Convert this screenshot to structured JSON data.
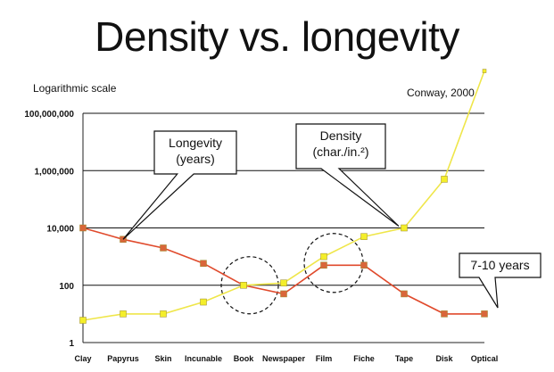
{
  "slide": {
    "title": "Density vs. longevity",
    "subtitle": "Logarithmic scale",
    "source": "Conway, 2000"
  },
  "chart_data": {
    "type": "line",
    "yscale": "log",
    "ylim": [
      1,
      100000000
    ],
    "yticks": [
      {
        "value": 1,
        "label": "1"
      },
      {
        "value": 100,
        "label": "100"
      },
      {
        "value": 10000,
        "label": "10,000"
      },
      {
        "value": 1000000,
        "label": "1,000,000"
      },
      {
        "value": 100000000,
        "label": "100,000,000"
      }
    ],
    "grid": true,
    "categories": [
      "Clay",
      "Papyrus",
      "Skin",
      "Incunable",
      "Book",
      "Newspaper",
      "Film",
      "Fiche",
      "Tape",
      "Disk",
      "Optical"
    ],
    "series": [
      {
        "key": "longevity",
        "color": "#e04a2c",
        "marker_color": "#d9663a",
        "values": [
          10000,
          4000,
          2000,
          580,
          100,
          50,
          500,
          500,
          50,
          10,
          10
        ]
      },
      {
        "key": "density",
        "color": "#efe64a",
        "marker_color": "#f4ee2a",
        "values": [
          6,
          10,
          10,
          26,
          100,
          120,
          1000,
          5000,
          10000,
          500000,
          3000000000
        ]
      }
    ],
    "callouts": [
      {
        "name": "longevity-callout",
        "lines": [
          "Longevity",
          "(years)"
        ]
      },
      {
        "name": "density-callout",
        "lines": [
          "Density",
          "(char./in.²)"
        ]
      },
      {
        "name": "range-callout",
        "lines": [
          "7-10 years"
        ]
      }
    ]
  }
}
